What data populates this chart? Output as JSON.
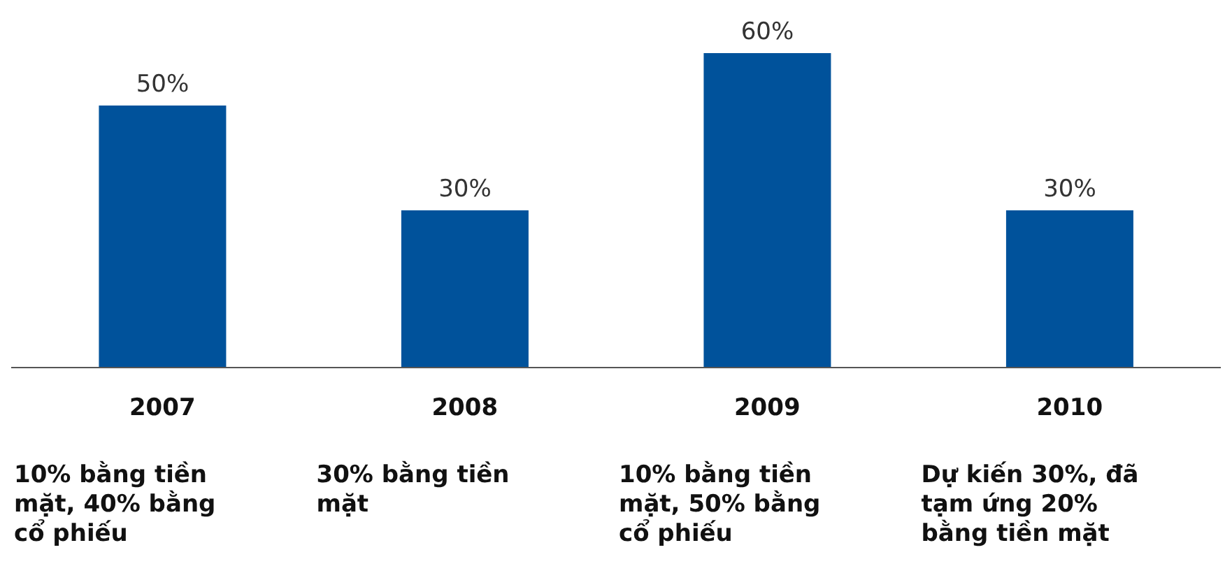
{
  "chart_data": {
    "type": "bar",
    "categories": [
      "2007",
      "2008",
      "2009",
      "2010"
    ],
    "values": [
      50,
      30,
      60,
      30
    ],
    "value_labels": [
      "50%",
      "30%",
      "60%",
      "30%"
    ],
    "color": "#00529b",
    "grid": false,
    "legend": false,
    "annotations": [
      "10% bằng tiền mặt, 40% bằng cổ phiếu",
      "30% bằng tiền mặt",
      "10% bằng tiền mặt, 50% bằng cổ phiếu",
      "Dự kiến 30%, đã tạm ứng 20% bằng tiền mặt"
    ]
  }
}
